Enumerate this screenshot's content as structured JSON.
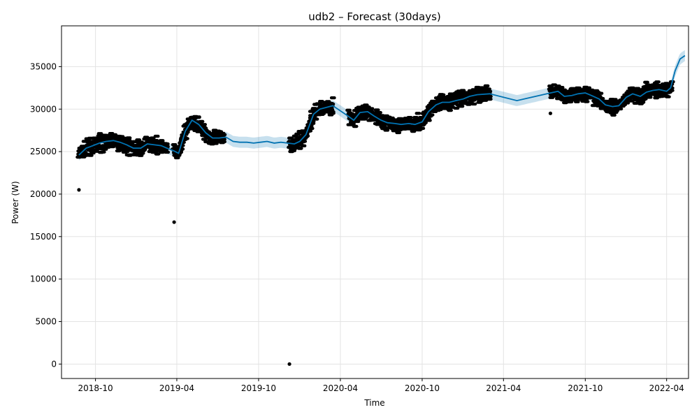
{
  "chart_data": {
    "type": "line",
    "title": "udb2 – Forecast (30days)",
    "xlabel": "Time",
    "ylabel": "Power (W)",
    "grid": true,
    "xlim": [
      "2018-07-17",
      "2022-05-20"
    ],
    "ylim": [
      -1700,
      39800
    ],
    "x_ticks": [
      "2018-10",
      "2019-04",
      "2019-10",
      "2020-04",
      "2020-10",
      "2021-04",
      "2021-10",
      "2022-04"
    ],
    "y_ticks": [
      0,
      5000,
      10000,
      15000,
      20000,
      25000,
      30000,
      35000
    ],
    "colors": {
      "forecast_line": "#0072B2",
      "uncertainty_band": "#0072B2",
      "observations": "#000000"
    },
    "series": [
      {
        "kind": "forecast",
        "x": [
          "2018-08-25",
          "2018-09-10",
          "2018-09-25",
          "2018-10-10",
          "2018-10-25",
          "2018-11-10",
          "2018-11-25",
          "2018-12-10",
          "2018-12-25",
          "2019-01-10",
          "2019-01-25",
          "2019-02-10",
          "2019-02-25",
          "2019-03-10",
          "2019-03-25",
          "2019-04-05",
          "2019-04-20",
          "2019-05-05",
          "2019-05-20",
          "2019-06-05",
          "2019-06-20",
          "2019-07-05",
          "2019-07-20",
          "2019-08-05",
          "2019-08-20",
          "2019-09-05",
          "2019-09-20",
          "2019-10-05",
          "2019-10-20",
          "2019-11-05",
          "2019-11-20",
          "2019-12-05",
          "2019-12-20",
          "2020-01-01",
          "2020-01-15",
          "2020-02-01",
          "2020-02-15",
          "2020-03-01",
          "2020-03-15",
          "2020-04-01",
          "2020-04-15",
          "2020-05-01",
          "2020-05-15",
          "2020-06-01",
          "2020-06-15",
          "2020-07-01",
          "2020-07-15",
          "2020-08-01",
          "2020-08-15",
          "2020-09-01",
          "2020-09-15",
          "2020-10-01",
          "2020-10-15",
          "2020-11-01",
          "2020-11-15",
          "2020-12-01",
          "2020-12-15",
          "2021-01-01",
          "2021-01-15",
          "2021-02-01",
          "2021-03-01",
          "2021-05-01",
          "2021-07-15",
          "2021-08-01",
          "2021-08-15",
          "2021-09-01",
          "2021-09-15",
          "2021-10-01",
          "2021-10-15",
          "2021-11-01",
          "2021-11-15",
          "2021-12-01",
          "2021-12-15",
          "2022-01-01",
          "2022-01-15",
          "2022-02-01",
          "2022-02-15",
          "2022-03-01",
          "2022-03-15",
          "2022-04-01",
          "2022-04-10",
          "2022-04-20",
          "2022-05-01",
          "2022-05-12"
        ],
        "y": [
          24600,
          25400,
          25700,
          26000,
          26200,
          26300,
          26100,
          25800,
          25400,
          25400,
          25900,
          25800,
          25700,
          25400,
          25100,
          24800,
          27400,
          28700,
          28200,
          27200,
          26600,
          26600,
          26700,
          26200,
          26100,
          26100,
          26000,
          26100,
          26200,
          26000,
          26100,
          26000,
          25900,
          26200,
          27000,
          29400,
          30000,
          30200,
          30400,
          29800,
          29300,
          28700,
          29600,
          29700,
          29200,
          28700,
          28400,
          28300,
          28200,
          28300,
          28200,
          28500,
          29700,
          30500,
          30800,
          30800,
          31000,
          31200,
          31500,
          31700,
          31800,
          31000,
          31900,
          32100,
          31500,
          31600,
          31800,
          31900,
          31600,
          31200,
          30500,
          30300,
          30400,
          31400,
          31800,
          31500,
          32000,
          32200,
          32300,
          32100,
          32500,
          34500,
          35900,
          36300
        ]
      }
    ],
    "uncertainty_band_halfwidth": 650,
    "observed_ranges": [
      {
        "start": "2018-08-25",
        "end": "2019-03-10"
      },
      {
        "start": "2019-03-25",
        "end": "2019-07-15"
      },
      {
        "start": "2019-12-10",
        "end": "2020-03-15"
      },
      {
        "start": "2020-04-20",
        "end": "2021-03-01"
      },
      {
        "start": "2021-07-15",
        "end": "2022-04-12"
      }
    ],
    "observation_spread": 1300,
    "outliers": [
      {
        "x": "2018-08-25",
        "y": 20500
      },
      {
        "x": "2019-03-26",
        "y": 16700
      },
      {
        "x": "2019-12-09",
        "y": 0
      },
      {
        "x": "2021-07-15",
        "y": 29500
      }
    ]
  }
}
